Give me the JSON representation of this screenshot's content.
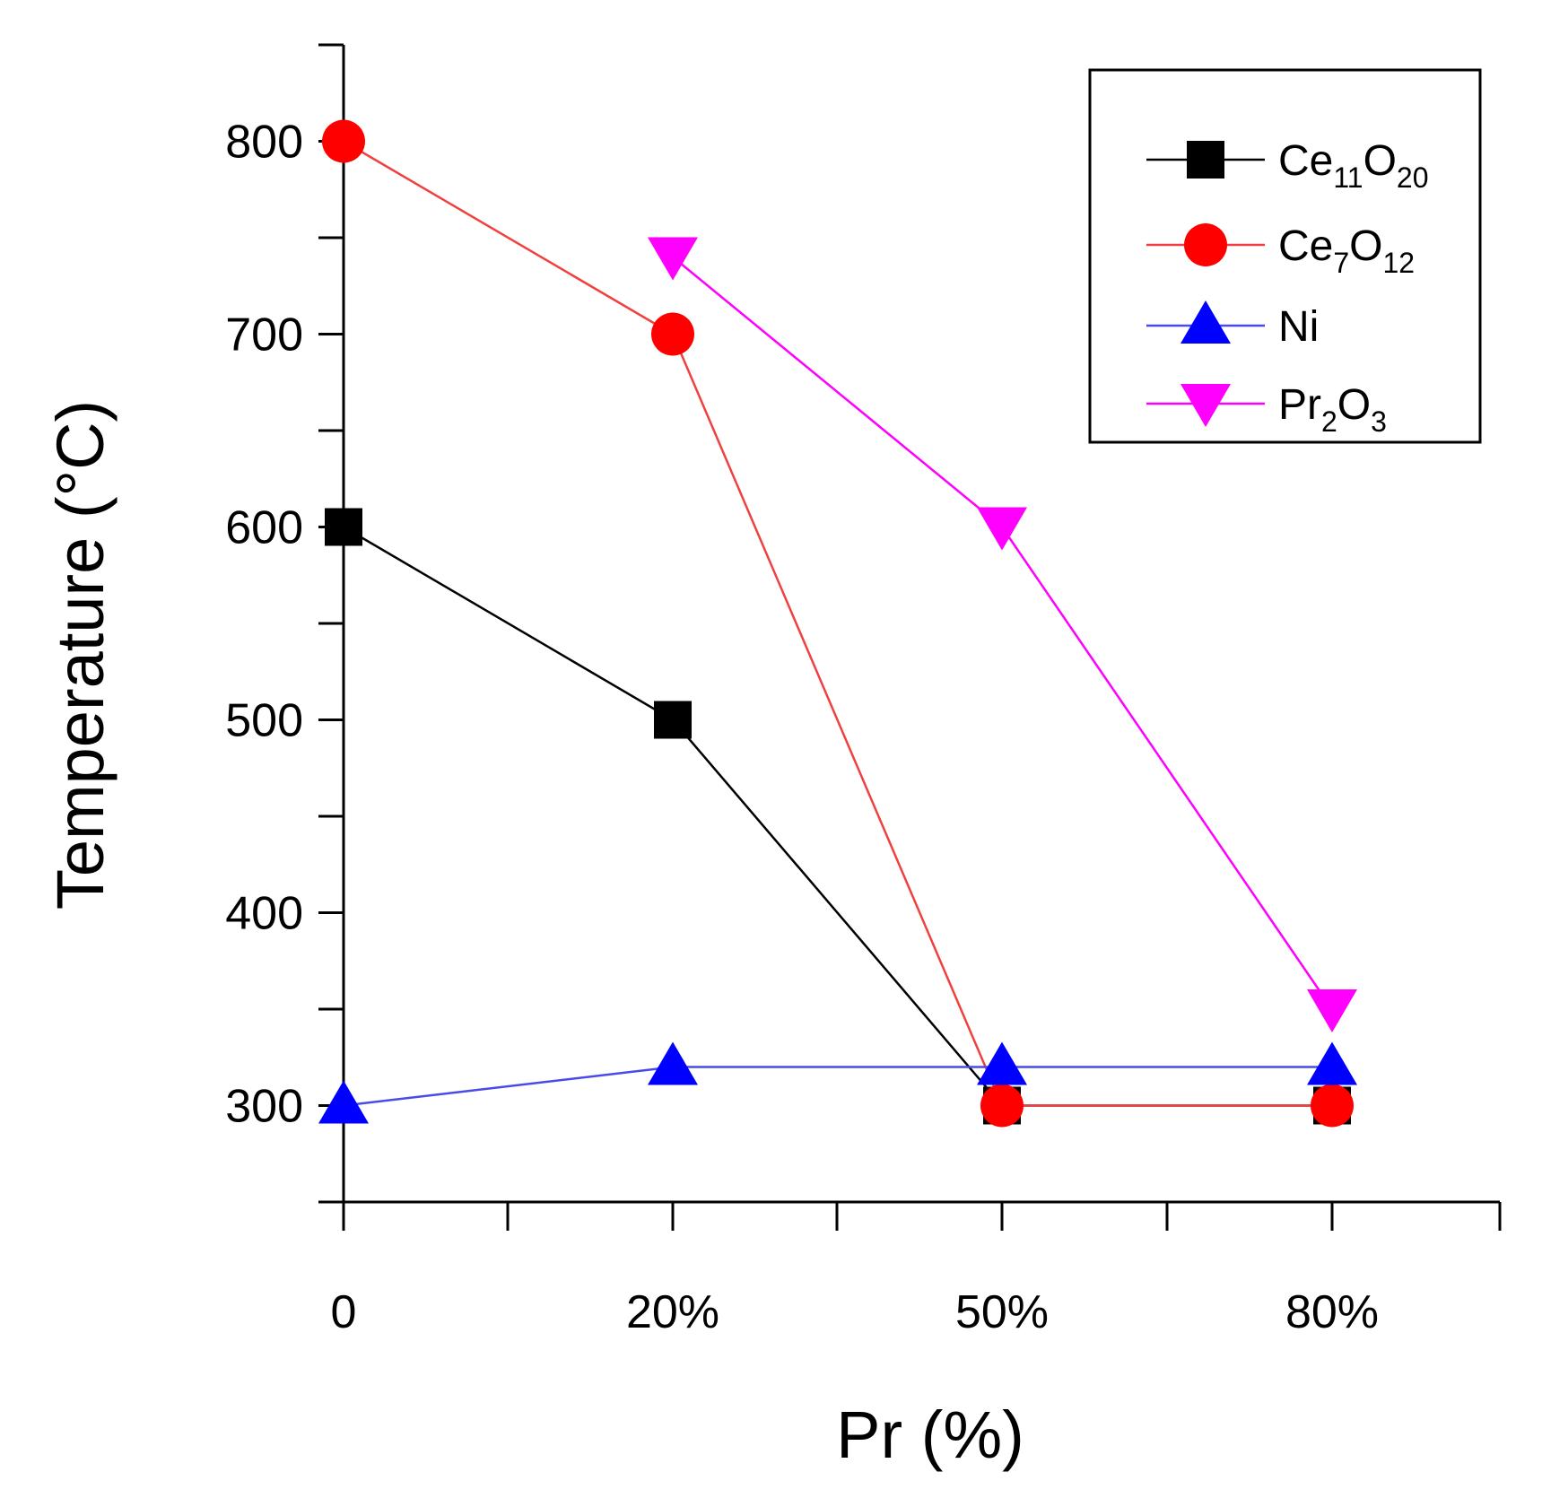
{
  "chart_data": {
    "type": "line",
    "title": "",
    "xlabel": "Pr (%)",
    "ylabel": "Temperature (°C)",
    "categories": [
      "0",
      "20%",
      "50%",
      "80%"
    ],
    "ylim": [
      250,
      850
    ],
    "yticks": [
      300,
      400,
      500,
      600,
      700,
      800
    ],
    "grid": false,
    "legend_position": "top-right",
    "series": [
      {
        "name": "Ce11O20",
        "label_base": "Ce",
        "label_sub1": "11",
        "label_mid": "O",
        "label_sub2": "20",
        "color": "#000000",
        "line_color": "#000000",
        "marker": "square",
        "values": [
          600,
          500,
          300,
          300
        ]
      },
      {
        "name": "Ce7O12",
        "label_base": "Ce",
        "label_sub1": "7",
        "label_mid": "O",
        "label_sub2": "12",
        "color": "#ff0000",
        "line_color": "#f04040",
        "marker": "circle",
        "values": [
          800,
          700,
          300,
          300
        ]
      },
      {
        "name": "Ni",
        "label_base": "Ni",
        "label_sub1": "",
        "label_mid": "",
        "label_sub2": "",
        "color": "#0000ff",
        "line_color": "#4a4ae6",
        "marker": "triangle-up",
        "values": [
          300,
          320,
          320,
          320
        ]
      },
      {
        "name": "Pr2O3",
        "label_base": "Pr",
        "label_sub1": "2",
        "label_mid": "O",
        "label_sub2": "3",
        "color": "#ff00ff",
        "line_color": "#ff00ff",
        "marker": "triangle-down",
        "values": [
          null,
          740,
          600,
          350
        ]
      }
    ]
  }
}
